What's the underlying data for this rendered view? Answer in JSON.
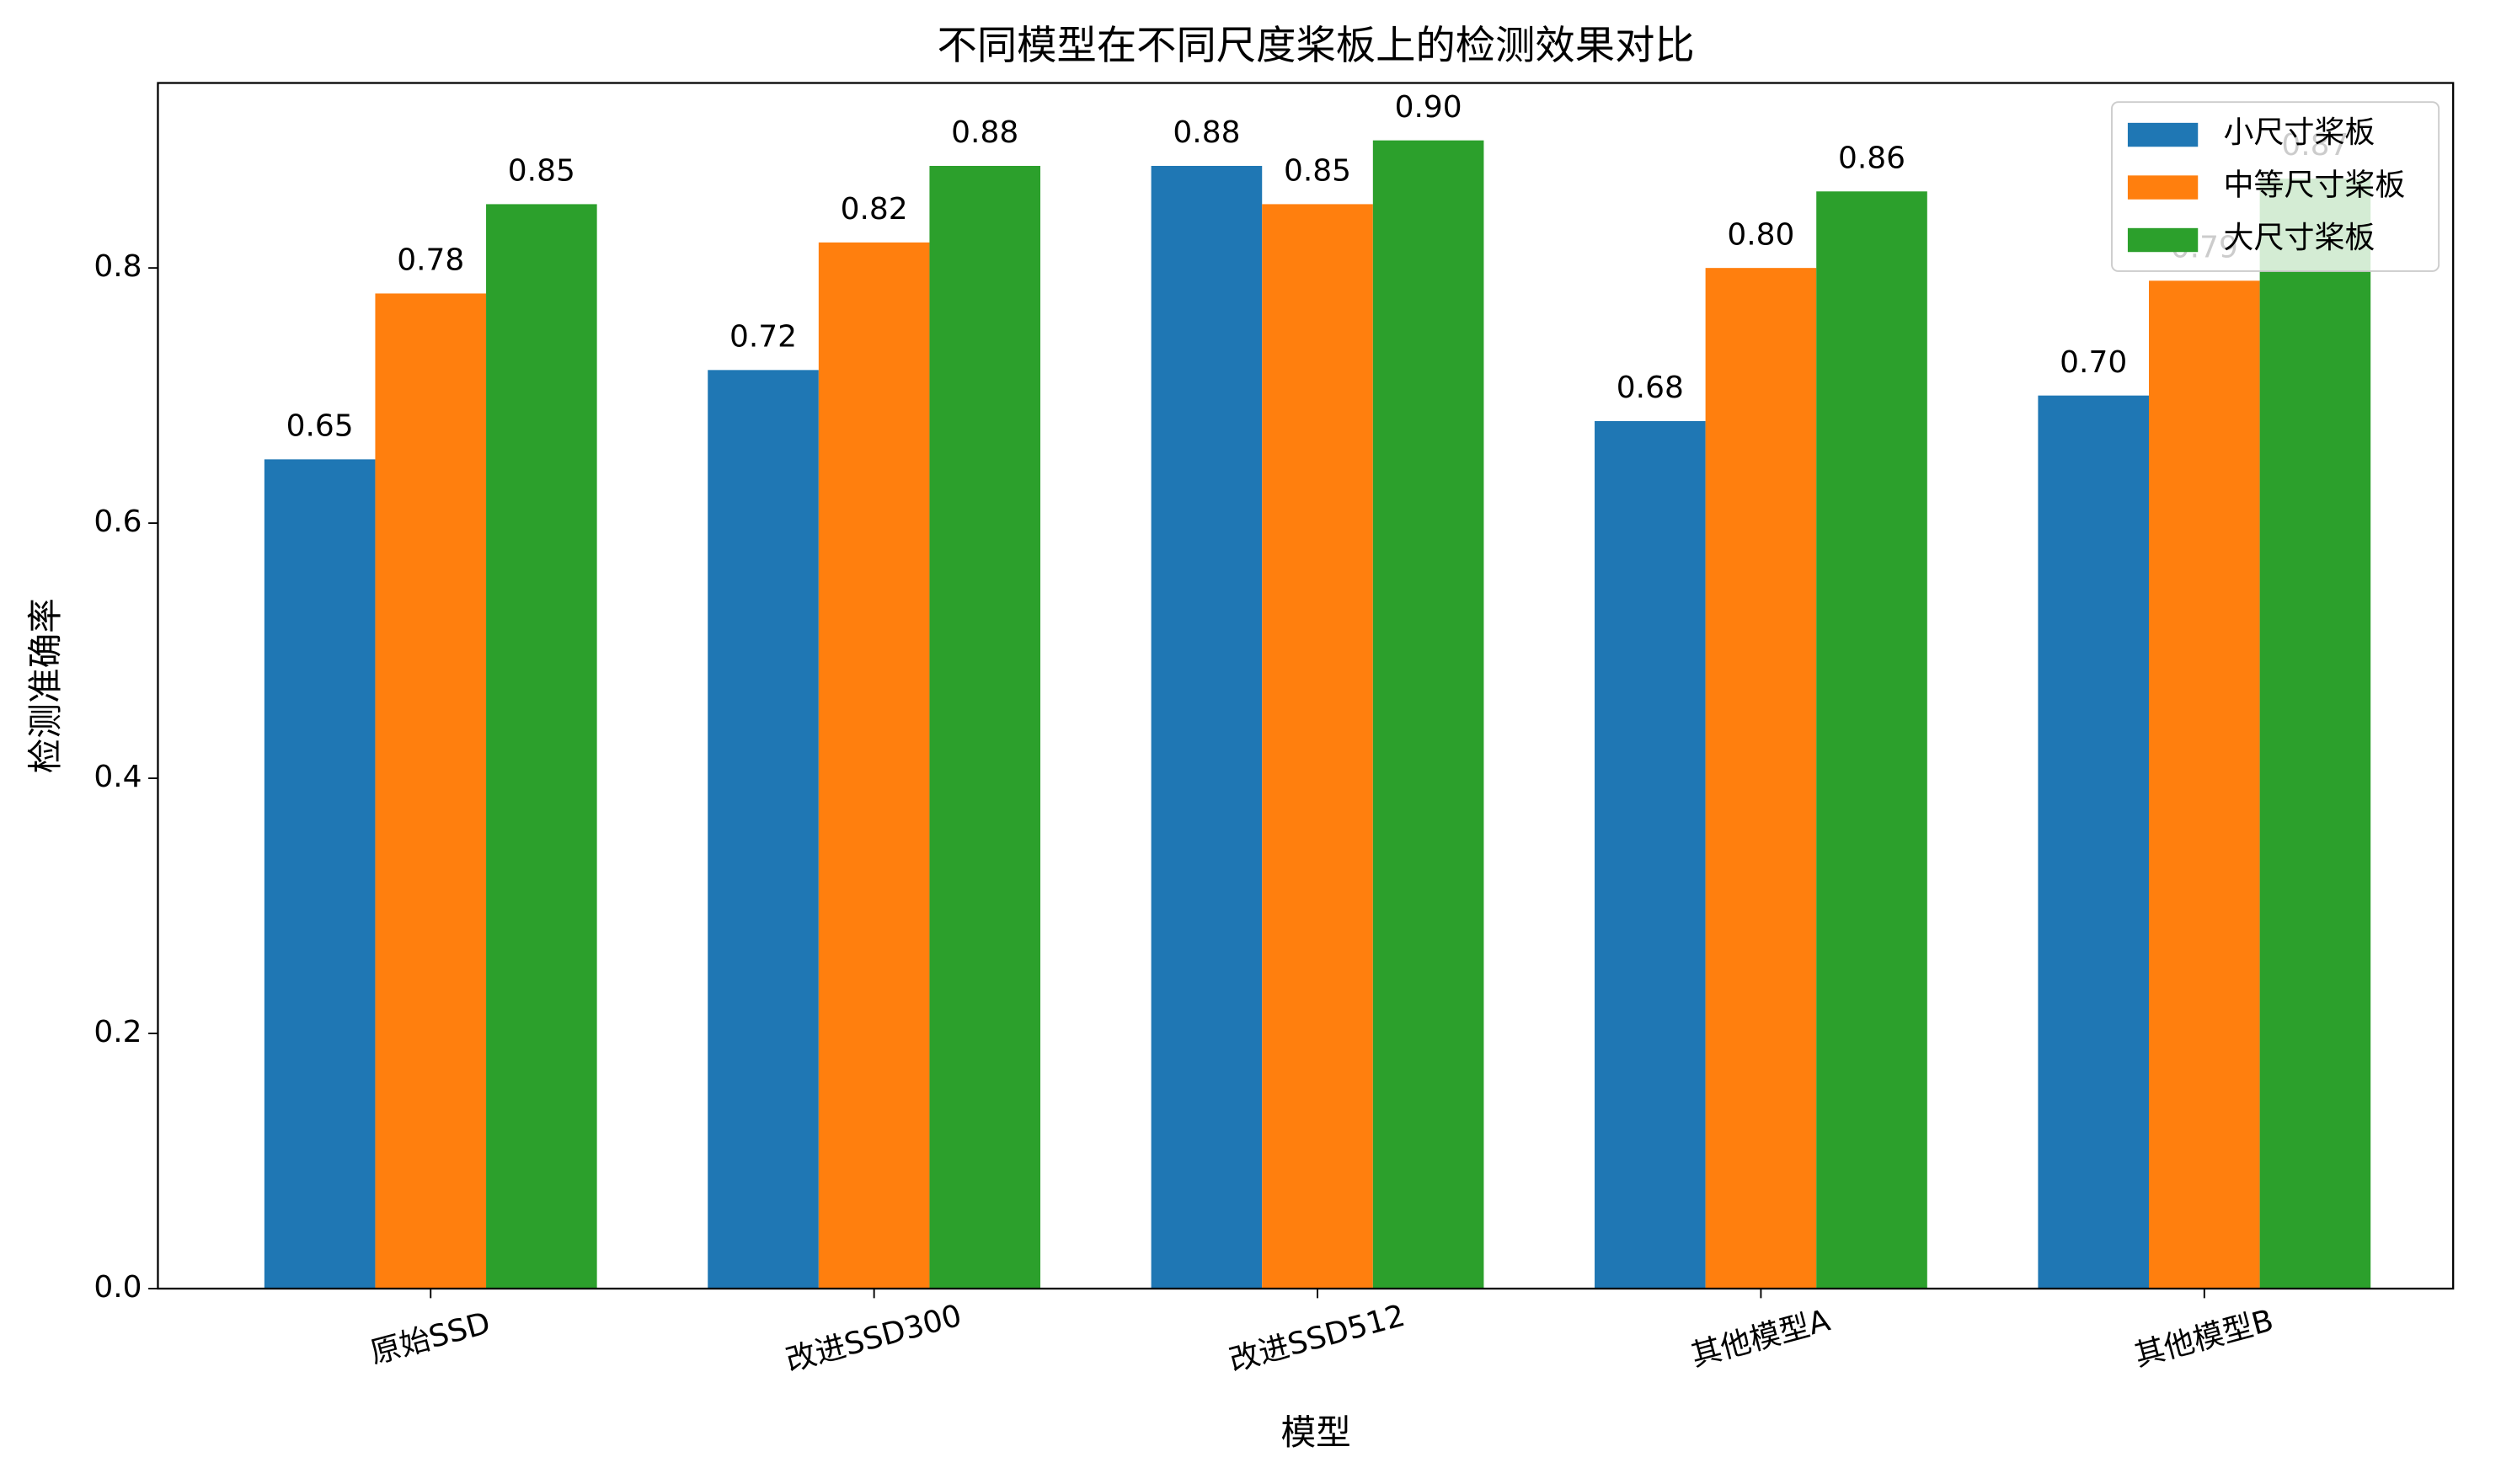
{
  "chart_data": {
    "type": "bar",
    "title": "不同模型在不同尺度桨板上的检测效果对比",
    "x_label": "模型",
    "y_label": "检测准确率",
    "categories": [
      "原始SSD",
      "改进SSD300",
      "改进SSD512",
      "其他模型A",
      "其他模型B"
    ],
    "series": [
      {
        "name": "小尺寸桨板",
        "color": "#1f77b4",
        "values": [
          0.65,
          0.72,
          0.88,
          0.68,
          0.7
        ],
        "value_labels": [
          "0.65",
          "0.72",
          "0.88",
          "0.68",
          "0.70"
        ]
      },
      {
        "name": "中等尺寸桨板",
        "color": "#ff7f0e",
        "values": [
          0.78,
          0.82,
          0.85,
          0.8,
          0.79
        ],
        "value_labels": [
          "0.78",
          "0.82",
          "0.85",
          "0.80",
          "0.79"
        ]
      },
      {
        "name": "大尺寸桨板",
        "color": "#2ca02c",
        "values": [
          0.85,
          0.88,
          0.9,
          0.86,
          0.87
        ],
        "value_labels": [
          "0.85",
          "0.88",
          "0.90",
          "0.86",
          "0.87"
        ]
      }
    ],
    "ylim": [
      0,
      0.945
    ],
    "yticks": [
      {
        "value": 0,
        "label": "0.0"
      },
      0.2,
      0.4,
      0.6,
      0.8
    ],
    "legend": "upper right",
    "grid": false
  }
}
